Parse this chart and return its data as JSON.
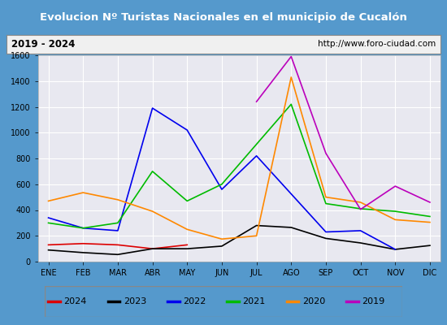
{
  "title": "Evolucion Nº Turistas Nacionales en el municipio de Cucalón",
  "subtitle_left": "2019 - 2024",
  "subtitle_right": "http://www.foro-ciudad.com",
  "x_labels": [
    "ENE",
    "FEB",
    "MAR",
    "ABR",
    "MAY",
    "JUN",
    "JUL",
    "AGO",
    "SEP",
    "OCT",
    "NOV",
    "DIC"
  ],
  "ylim": [
    0,
    1600
  ],
  "yticks": [
    0,
    200,
    400,
    600,
    800,
    1000,
    1200,
    1400,
    1600
  ],
  "series": {
    "2024": {
      "color": "#dd0000",
      "data": [
        130,
        140,
        130,
        100,
        130,
        null,
        null,
        null,
        null,
        null,
        null,
        null
      ]
    },
    "2023": {
      "color": "#000000",
      "data": [
        90,
        70,
        55,
        100,
        100,
        120,
        280,
        265,
        180,
        145,
        95,
        125
      ]
    },
    "2022": {
      "color": "#0000ee",
      "data": [
        340,
        260,
        240,
        1190,
        1020,
        560,
        820,
        null,
        230,
        240,
        95,
        null
      ]
    },
    "2021": {
      "color": "#00bb00",
      "data": [
        300,
        260,
        300,
        700,
        470,
        600,
        null,
        1220,
        450,
        410,
        390,
        350
      ]
    },
    "2020": {
      "color": "#ff8800",
      "data": [
        470,
        535,
        480,
        390,
        250,
        175,
        200,
        1430,
        500,
        460,
        325,
        305
      ]
    },
    "2019": {
      "color": "#bb00bb",
      "data": [
        null,
        null,
        null,
        null,
        null,
        null,
        1240,
        1590,
        840,
        405,
        585,
        460
      ]
    }
  },
  "title_bg_color": "#4488cc",
  "title_font_color": "#ffffff",
  "subtitle_bg_color": "#f0f0f0",
  "plot_bg_color": "#e8e8f0",
  "grid_color": "#ffffff",
  "outer_bg_color": "#5599cc",
  "legend_order": [
    "2024",
    "2023",
    "2022",
    "2021",
    "2020",
    "2019"
  ]
}
